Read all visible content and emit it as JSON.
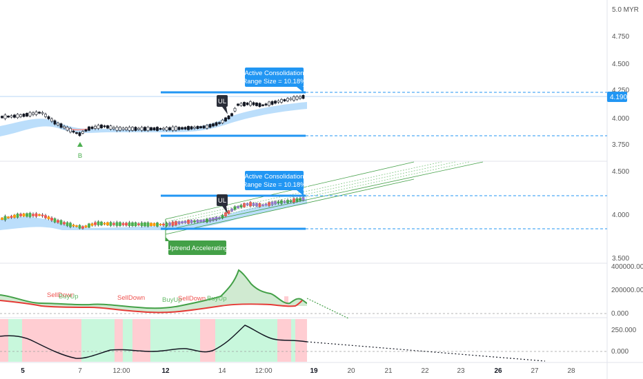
{
  "chart_data": {
    "type": "candlestick",
    "currency": "MYR",
    "price_axis": {
      "top_label": "5.0 MYR",
      "ticks_pane1": [
        "4.750",
        "4.500",
        "4.250",
        "4.000",
        "3.750"
      ],
      "ticks_pane2": [
        "4.500",
        "4.000",
        "3.500"
      ],
      "last_price": "4.190"
    },
    "indicator_axis": {
      "ticks_pane3": [
        "400000.000",
        "200000.000",
        "0.000"
      ],
      "ticks_pane4": [
        "250.000",
        "0.000"
      ]
    },
    "time_axis": [
      "5",
      "7",
      "12:00",
      "12",
      "14",
      "12:00",
      "19",
      "20",
      "21",
      "22",
      "23",
      "26",
      "27",
      "28"
    ],
    "annotations": {
      "consolidation_line1": "Active Consolidation",
      "consolidation_line2": "(Range Size = 10.18%)",
      "ul_label": "UL",
      "b_label": "B",
      "uptrend_label": "Uptrend Accelerating",
      "sell_down": "SellDown",
      "buy_up": "BuyUp"
    },
    "colors": {
      "accent_blue": "#2196f3",
      "green": "#43a047",
      "red": "#e53935",
      "band_blue": "#bbdefb",
      "bg_red": "#ffcdd2",
      "bg_green": "#c8f7dc"
    }
  }
}
